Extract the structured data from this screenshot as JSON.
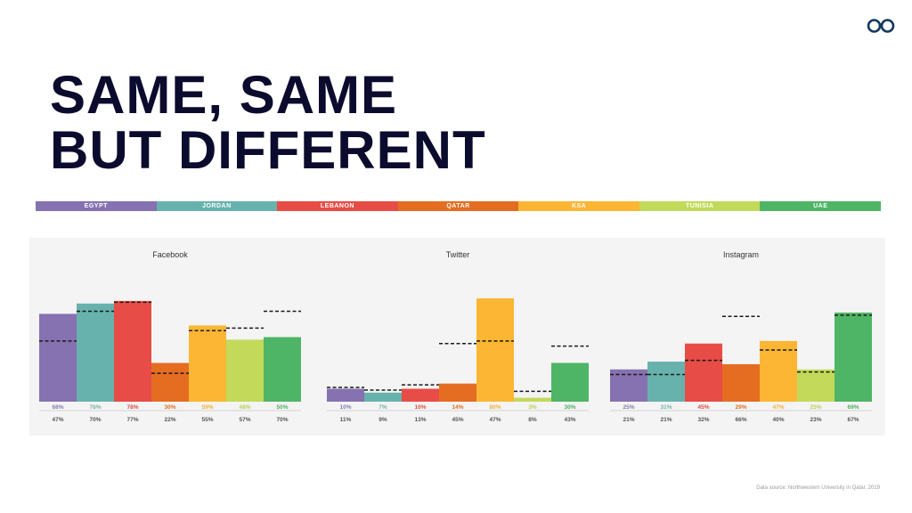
{
  "title": {
    "line1": "SAME, SAME",
    "line2": "BUT DIFFERENT"
  },
  "legend": [
    {
      "label": "EGYPT",
      "color": "#8671b1"
    },
    {
      "label": "JORDAN",
      "color": "#68b2ae"
    },
    {
      "label": "LEBANON",
      "color": "#e84c46"
    },
    {
      "label": "QATAR",
      "color": "#e56d22"
    },
    {
      "label": "KSA",
      "color": "#fcb633"
    },
    {
      "label": "TUNISIA",
      "color": "#c2d95a"
    },
    {
      "label": "UAE",
      "color": "#4fb566"
    }
  ],
  "source": "Data source: Northwestern University in Qatar, 2019",
  "chart_data": [
    {
      "type": "bar",
      "title": "Facebook",
      "categories": [
        "EGYPT",
        "JORDAN",
        "LEBANON",
        "QATAR",
        "KSA",
        "TUNISIA",
        "UAE"
      ],
      "series": [
        {
          "values": [
            68,
            76,
            78,
            30,
            59,
            48,
            50
          ]
        },
        {
          "values": [
            47,
            70,
            77,
            22,
            55,
            57,
            70
          ]
        }
      ],
      "labels_top": [
        "68%",
        "76%",
        "78%",
        "30%",
        "59%",
        "48%",
        "50%"
      ],
      "labels_bottom": [
        "47%",
        "70%",
        "77%",
        "22%",
        "55%",
        "57%",
        "70%"
      ],
      "ylim": [
        0,
        100
      ]
    },
    {
      "type": "bar",
      "title": "Twitter",
      "categories": [
        "EGYPT",
        "JORDAN",
        "LEBANON",
        "QATAR",
        "KSA",
        "TUNISIA",
        "UAE"
      ],
      "series": [
        {
          "values": [
            10,
            7,
            10,
            14,
            80,
            3,
            30
          ]
        },
        {
          "values": [
            11,
            9,
            13,
            45,
            47,
            8,
            43
          ]
        }
      ],
      "labels_top": [
        "10%",
        "7%",
        "10%",
        "14%",
        "80%",
        "3%",
        "30%"
      ],
      "labels_bottom": [
        "11%",
        "9%",
        "13%",
        "45%",
        "47%",
        "8%",
        "43%"
      ],
      "ylim": [
        0,
        100
      ]
    },
    {
      "type": "bar",
      "title": "Instagram",
      "categories": [
        "EGYPT",
        "JORDAN",
        "LEBANON",
        "QATAR",
        "KSA",
        "TUNISIA",
        "UAE"
      ],
      "series": [
        {
          "values": [
            25,
            31,
            45,
            29,
            47,
            25,
            69
          ]
        },
        {
          "values": [
            21,
            21,
            32,
            66,
            40,
            23,
            67
          ]
        }
      ],
      "labels_top": [
        "25%",
        "31%",
        "45%",
        "29%",
        "47%",
        "25%",
        "69%"
      ],
      "labels_bottom": [
        "21%",
        "21%",
        "32%",
        "66%",
        "40%",
        "23%",
        "67%"
      ],
      "ylim": [
        0,
        100
      ]
    }
  ]
}
